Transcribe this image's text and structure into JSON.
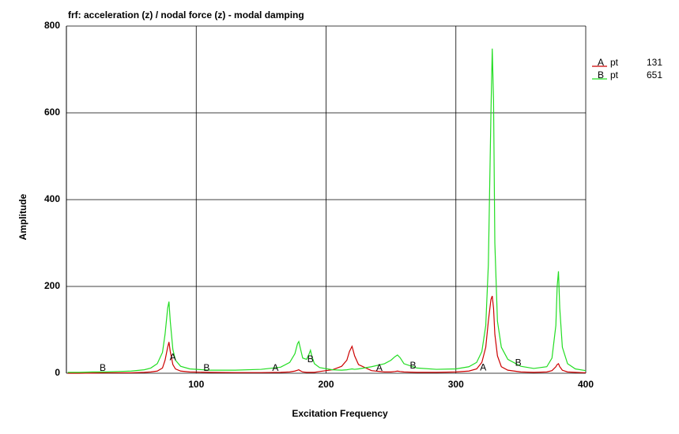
{
  "chart_data": {
    "type": "line",
    "title": "frf: acceleration (z) / nodal force (z) - modal damping",
    "x_label": "Excitation Frequency",
    "y_label": "Amplitude",
    "xlim": [
      0,
      400
    ],
    "ylim": [
      0,
      800
    ],
    "xticks": [
      100,
      200,
      300,
      400
    ],
    "yticks": [
      0,
      200,
      400,
      600,
      800
    ],
    "grid": true,
    "x": [
      1,
      10,
      20,
      30,
      40,
      50,
      60,
      65,
      70,
      74,
      76,
      78,
      79,
      80,
      82,
      84,
      88,
      95,
      110,
      130,
      150,
      165,
      172,
      176,
      178,
      179,
      180,
      182,
      185,
      187,
      188,
      189,
      191,
      195,
      205,
      212,
      216,
      218,
      220,
      222,
      225,
      235,
      245,
      250,
      253,
      255,
      257,
      260,
      270,
      285,
      300,
      310,
      316,
      320,
      323,
      325,
      327,
      328,
      329,
      330,
      332,
      335,
      340,
      350,
      360,
      370,
      374,
      377,
      378,
      379,
      380,
      382,
      386,
      392,
      400
    ],
    "series": [
      {
        "name": "A",
        "point_label": "pt",
        "point": 131,
        "color": "#cc0000",
        "values": [
          0,
          0,
          0.5,
          1,
          1,
          1,
          2,
          3,
          5,
          12,
          30,
          60,
          72,
          50,
          20,
          10,
          5,
          3,
          2,
          1.5,
          1.5,
          2,
          3,
          5,
          7,
          8,
          6,
          3,
          2,
          2,
          2,
          2,
          2,
          4,
          8,
          16,
          30,
          50,
          62,
          40,
          20,
          6,
          3,
          3,
          4,
          5,
          4,
          3,
          2,
          2,
          3,
          5,
          10,
          25,
          60,
          120,
          170,
          178,
          150,
          90,
          40,
          15,
          7,
          3,
          2,
          3,
          6,
          15,
          20,
          22,
          15,
          7,
          3,
          2,
          1
        ]
      },
      {
        "name": "B",
        "point_label": "pt",
        "point": 651,
        "color": "#22dd22",
        "values": [
          2,
          2,
          3,
          3,
          4,
          5,
          8,
          12,
          22,
          48,
          90,
          150,
          165,
          120,
          55,
          30,
          16,
          10,
          7,
          7,
          9,
          14,
          25,
          45,
          68,
          73,
          60,
          35,
          32,
          45,
          53,
          40,
          22,
          13,
          8,
          7,
          8,
          9,
          10,
          9,
          10,
          15,
          22,
          30,
          38,
          42,
          36,
          22,
          12,
          9,
          10,
          15,
          25,
          50,
          110,
          250,
          600,
          748,
          630,
          300,
          120,
          60,
          32,
          16,
          11,
          15,
          35,
          110,
          200,
          235,
          150,
          60,
          22,
          10,
          6
        ]
      }
    ],
    "curve_labels": [
      {
        "text": "B",
        "x": 28,
        "y": 11
      },
      {
        "text": "A",
        "x": 82,
        "y": 36
      },
      {
        "text": "B",
        "x": 108,
        "y": 11
      },
      {
        "text": "A",
        "x": 161,
        "y": 11
      },
      {
        "text": "B",
        "x": 188,
        "y": 31
      },
      {
        "text": "A",
        "x": 241,
        "y": 11
      },
      {
        "text": "B",
        "x": 267,
        "y": 17
      },
      {
        "text": "A",
        "x": 321,
        "y": 12
      },
      {
        "text": "B",
        "x": 348,
        "y": 23
      }
    ]
  }
}
